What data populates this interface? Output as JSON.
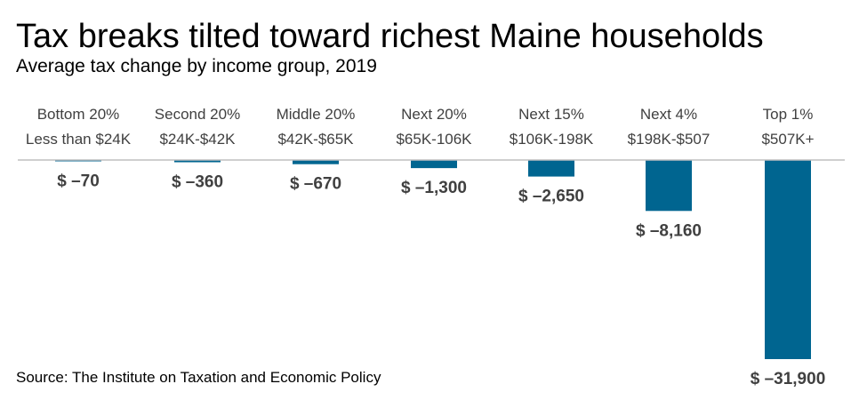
{
  "chart_data": {
    "type": "bar",
    "title": "Tax breaks tilted toward richest Maine households",
    "subtitle": "Average tax change by income group, 2019",
    "source": "Source: The Institute on Taxation and Economic Policy",
    "categories": [
      [
        "Bottom 20%",
        "Less than $24K"
      ],
      [
        "Second 20%",
        "$24K-$42K"
      ],
      [
        "Middle 20%",
        "$42K-$65K"
      ],
      [
        "Next 20%",
        "$65K-106K"
      ],
      [
        "Next 15%",
        "$106K-198K"
      ],
      [
        "Next 4%",
        "$198K-$507"
      ],
      [
        "Top 1%",
        "$507K+"
      ]
    ],
    "values": [
      -70,
      -360,
      -670,
      -1300,
      -2650,
      -8160,
      -31900
    ],
    "value_labels": [
      "$ –70",
      "$ –360",
      "$ –670",
      "$ –1,300",
      "$ –2,650",
      "$ –8,160",
      "$ –31,900"
    ],
    "ylim": [
      -31900,
      0
    ],
    "bar_color": "#006590",
    "baseline_color": "#bfbfbf"
  }
}
